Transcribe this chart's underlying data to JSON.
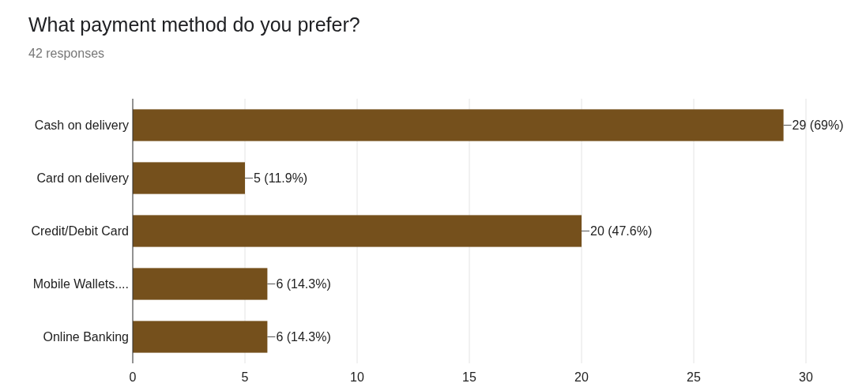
{
  "chart_data": {
    "type": "bar",
    "orientation": "horizontal",
    "title": "What payment method do you prefer?",
    "subtitle": "42 responses",
    "categories": [
      "Cash on delivery",
      "Card on delivery",
      "Credit/Debit Card",
      "Mobile Wallets....",
      "Online Banking"
    ],
    "values": [
      29,
      5,
      20,
      6,
      6
    ],
    "color": "#75501c",
    "value_labels": [
      "29 (69%)",
      "5 (11.9%)",
      "20 (47.6%)",
      "6 (14.3%)",
      "6 (14.3%)"
    ],
    "xlim": [
      0,
      30
    ],
    "xticks": [
      0,
      5,
      10,
      15,
      20,
      25,
      30
    ],
    "grid": "x"
  }
}
